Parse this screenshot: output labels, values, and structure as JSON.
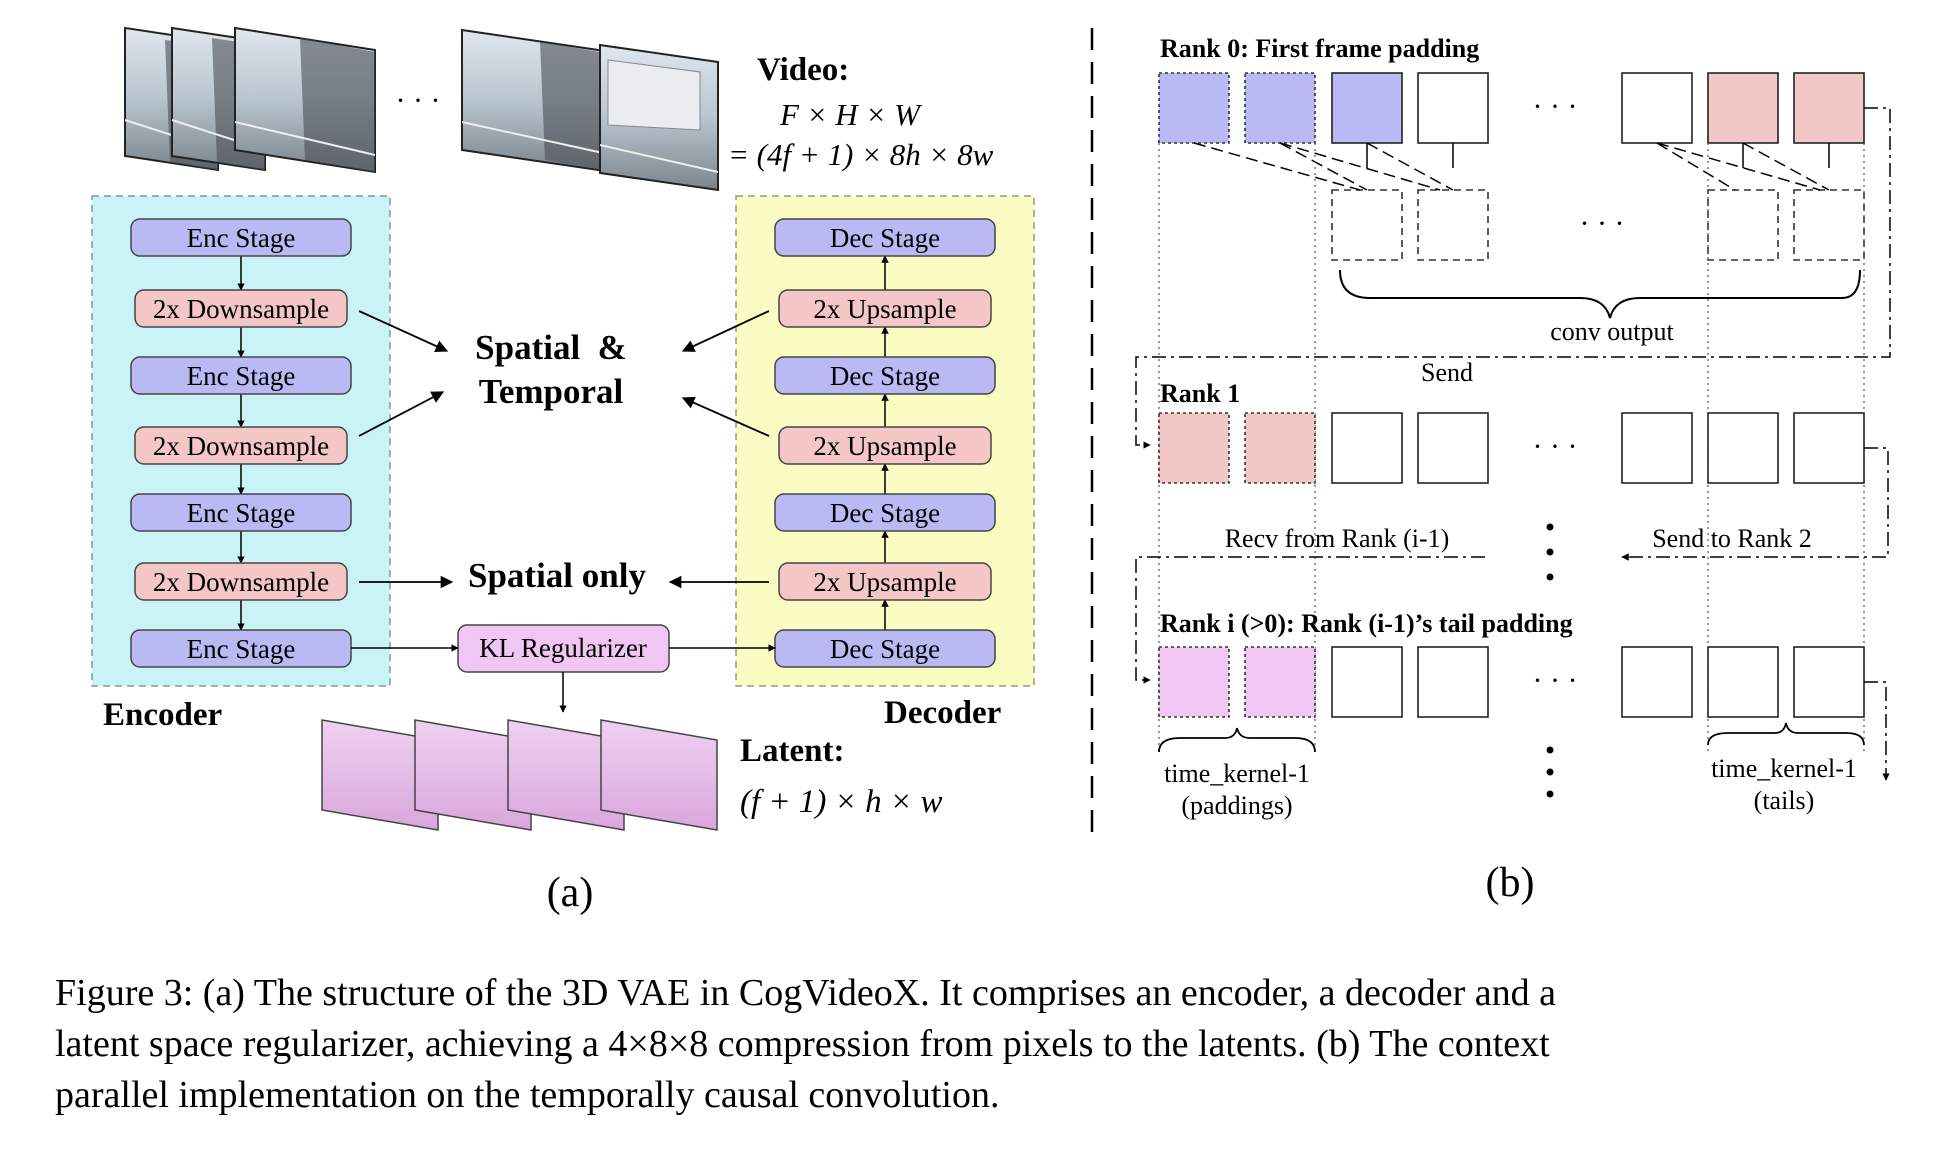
{
  "panel_a": {
    "video_title": "Video:",
    "video_dim_1": "F × H × W",
    "video_dim_2": "= (4f + 1) × 8h × 8w",
    "ellipsis": "· · ·",
    "enc_stage": "Enc Stage",
    "downsample": "2x Downsample",
    "dec_stage": "Dec Stage",
    "upsample": "2x Upsample",
    "spatial_temporal_1": "Spatial  &",
    "spatial_temporal_2": "Temporal",
    "spatial_only": "Spatial only",
    "kl_regularizer": "KL Regularizer",
    "encoder_label": "Encoder",
    "decoder_label": "Decoder",
    "latent_title": "Latent:",
    "latent_dim": "(f + 1) × h × w",
    "panel_label": "(a)"
  },
  "panel_b": {
    "rank0_title": "Rank 0: First frame padding",
    "conv_output": "conv output",
    "send": "Send",
    "rank1_title": "Rank 1",
    "recv_label": "Recv from Rank (i-1)",
    "send_to_label": "Send to Rank 2",
    "ranki_title": "Rank i (>0): Rank (i-1)’s tail padding",
    "time_kernel_left_1": "time_kernel-1",
    "time_kernel_left_2": "(paddings)",
    "time_kernel_right_1": "time_kernel-1",
    "time_kernel_right_2": "(tails)",
    "ellipsis": "· · ·",
    "panel_label": "(b)"
  },
  "caption": {
    "line1": "Figure 3: (a) The structure of the 3D VAE in CogVideoX. It comprises an encoder, a decoder and a",
    "line2": "latent space regularizer, achieving a 4×8×8 compression from pixels to the latents. (b) The context",
    "line3": "parallel implementation on the temporally causal convolution."
  },
  "colors": {
    "encoder_bg": "#c9f3f7",
    "decoder_bg": "#fbfbc4",
    "stage_fill": "#b9b9f4",
    "sample_fill": "#f4c6c6",
    "kl_fill": "#f0c6f2",
    "latent_fill": "#e7bde9",
    "padding_pink": "#f2c7c7",
    "padding_magenta": "#f2c6f3"
  }
}
